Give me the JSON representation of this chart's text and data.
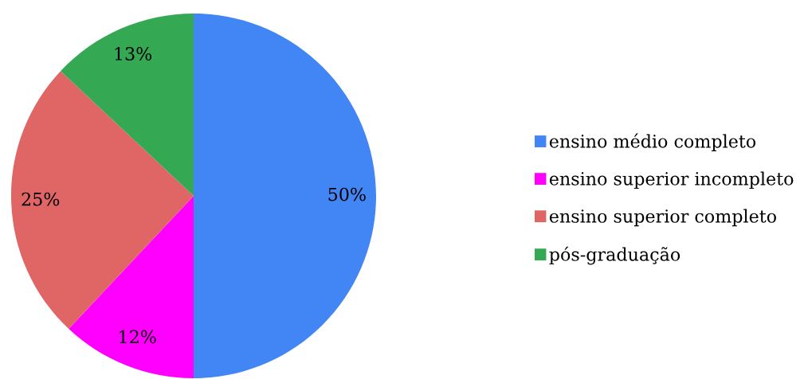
{
  "chart_data": {
    "type": "pie",
    "categories": [
      "ensino médio completo",
      "ensino superior incompleto",
      "ensino superior completo",
      "pós-graduação"
    ],
    "values": [
      50,
      12,
      25,
      13
    ],
    "value_labels": [
      "50%",
      "12%",
      "25%",
      "13%"
    ],
    "colors": [
      "#4285f4",
      "#ff00ff",
      "#e06666",
      "#34a853"
    ],
    "legend": "right"
  }
}
